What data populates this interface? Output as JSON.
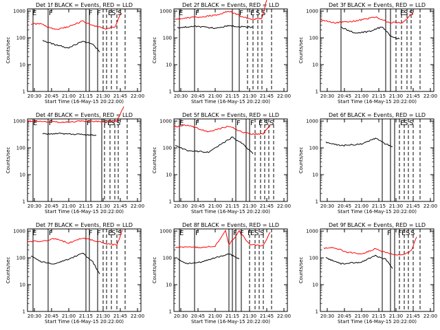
{
  "chart_data": {
    "type": "line",
    "layout": "3x3 grid of panels",
    "x_ticks": [
      "20:30",
      "20:45",
      "21:00",
      "21:15",
      "21:30",
      "21:45",
      "22:00"
    ],
    "x_range_min": [
      20.4,
      22.05
    ],
    "y_ticks": [
      "1",
      "10",
      "100",
      "1000"
    ],
    "y_range": [
      1,
      1200
    ],
    "y_scale": "log",
    "ylabel": "Counts/sec",
    "xlabel": "Start Time (16-May-15 20:22:00)",
    "legend": "BLACK = Events, RED = LLD",
    "colors": {
      "events": "#000000",
      "lld": "#ff0000"
    },
    "panels": [
      {
        "title": "Det 1f BLACK = Events, RED = LLD",
        "events": {
          "t": [
            20.62,
            20.8,
            21.0,
            21.2,
            21.35,
            21.45
          ],
          "v": [
            80,
            55,
            42,
            75,
            58,
            30
          ]
        },
        "lld": {
          "t": [
            20.45,
            20.6,
            20.8,
            21.0,
            21.2,
            21.35,
            21.55,
            21.68,
            21.75
          ],
          "v": [
            330,
            330,
            200,
            260,
            420,
            280,
            220,
            260,
            800
          ]
        },
        "solid_markers": [
          20.48,
          20.7,
          21.25,
          21.3,
          21.42
        ],
        "dashed_markers": [
          21.5,
          21.55,
          21.62,
          21.7,
          21.82
        ],
        "flags": [
          {
            "t": 20.46,
            "text": "E"
          },
          {
            "t": 20.7,
            "text": "F"
          },
          {
            "t": 21.28,
            "text": "F"
          },
          {
            "t": 21.4,
            "text": "F"
          },
          {
            "t": 21.56,
            "text": "E"
          },
          {
            "t": 21.61,
            "text": "S"
          },
          {
            "t": 21.7,
            "text": "S"
          }
        ]
      },
      {
        "title": "Det 2f BLACK = Events, RED = LLD",
        "events": {
          "t": [
            20.45,
            20.7,
            21.0,
            21.2,
            21.4,
            21.55
          ],
          "v": [
            240,
            270,
            230,
            280,
            260,
            250
          ]
        },
        "lld": {
          "t": [
            20.42,
            20.6,
            20.8,
            21.0,
            21.2,
            21.4,
            21.55,
            21.68,
            21.75
          ],
          "v": [
            500,
            560,
            600,
            700,
            1000,
            600,
            500,
            520,
            2600
          ]
        },
        "solid_markers": [
          20.48,
          20.7,
          21.25,
          21.35
        ],
        "dashed_markers": [
          21.47,
          21.55,
          21.62,
          21.68,
          21.82
        ],
        "flags": [
          {
            "t": 20.46,
            "text": "E"
          },
          {
            "t": 20.7,
            "text": "F"
          },
          {
            "t": 21.34,
            "text": "F"
          },
          {
            "t": 21.5,
            "text": "E"
          },
          {
            "t": 21.58,
            "text": "S"
          },
          {
            "t": 21.66,
            "text": "S"
          }
        ]
      },
      {
        "title": "Det 3f BLACK = Events, RED = LLD",
        "events": {
          "t": [
            20.7,
            20.9,
            21.1,
            21.3,
            21.42,
            21.55
          ],
          "v": [
            250,
            150,
            170,
            260,
            120,
            90
          ]
        },
        "lld": {
          "t": [
            20.4,
            20.6,
            20.9,
            21.2,
            21.4,
            21.6,
            21.75
          ],
          "v": [
            480,
            360,
            420,
            600,
            380,
            360,
            900
          ]
        },
        "solid_markers": [
          20.7,
          21.35,
          21.42
        ],
        "dashed_markers": [
          21.5,
          21.58,
          21.66,
          21.72,
          21.85
        ],
        "flags": [
          {
            "t": 21.55,
            "text": "E"
          },
          {
            "t": 21.6,
            "text": "S"
          },
          {
            "t": 21.68,
            "text": "S"
          }
        ]
      },
      {
        "title": "Det 4f BLACK = Events, RED = LLD",
        "events": {
          "t": [
            20.62,
            20.9,
            21.2,
            21.4
          ],
          "v": [
            330,
            340,
            310,
            300
          ]
        },
        "lld": {
          "t": [
            20.4,
            20.6,
            20.9,
            21.2,
            21.4,
            21.6,
            21.7,
            21.8
          ],
          "v": [
            1000,
            950,
            900,
            1000,
            980,
            950,
            1000,
            3500
          ]
        },
        "solid_markers": [
          20.48,
          20.7,
          21.25,
          21.32,
          21.48
        ],
        "dashed_markers": [
          21.52,
          21.6,
          21.67,
          21.72,
          21.85
        ],
        "flags": [
          {
            "t": 20.47,
            "text": "E"
          },
          {
            "t": 20.7,
            "text": "F"
          },
          {
            "t": 21.25,
            "text": "F"
          },
          {
            "t": 21.5,
            "text": "F"
          },
          {
            "t": 21.55,
            "text": "E"
          },
          {
            "t": 21.6,
            "text": "S"
          },
          {
            "t": 21.68,
            "text": "S"
          }
        ]
      },
      {
        "title": "Det 5f BLACK = Events, RED = LLD",
        "events": {
          "t": [
            20.42,
            20.6,
            20.9,
            21.25,
            21.4,
            21.55
          ],
          "v": [
            120,
            80,
            70,
            250,
            140,
            60
          ]
        },
        "lld": {
          "t": [
            20.4,
            20.6,
            20.9,
            21.2,
            21.4,
            21.55,
            21.7,
            21.8
          ],
          "v": [
            600,
            720,
            400,
            650,
            380,
            320,
            340,
            700
          ]
        },
        "solid_markers": [
          20.48,
          20.7,
          21.3,
          21.45,
          21.5
        ],
        "dashed_markers": [
          21.58,
          21.66,
          21.72,
          21.78,
          21.85
        ],
        "flags": [
          {
            "t": 20.47,
            "text": "E"
          },
          {
            "t": 20.7,
            "text": "F"
          },
          {
            "t": 21.3,
            "text": "F"
          },
          {
            "t": 21.5,
            "text": "F"
          },
          {
            "t": 21.62,
            "text": "E"
          },
          {
            "t": 21.7,
            "text": "S"
          },
          {
            "t": 21.78,
            "text": "S"
          }
        ]
      },
      {
        "title": "Det 6f BLACK = Events, RED = LLD",
        "events": {
          "t": [
            20.48,
            20.7,
            21.0,
            21.2,
            21.35,
            21.45
          ],
          "v": [
            160,
            120,
            140,
            230,
            140,
            110
          ]
        },
        "lld": {
          "t": [],
          "v": []
        },
        "solid_markers": [
          21.3,
          21.42,
          21.48
        ],
        "dashed_markers": [
          21.55,
          21.62,
          21.68,
          21.75,
          21.85
        ],
        "flags": [
          {
            "t": 21.55,
            "text": "E"
          },
          {
            "t": 21.6,
            "text": "S"
          },
          {
            "t": 21.68,
            "text": "S"
          }
        ]
      },
      {
        "title": "Det 7f BLACK = Events, RED = LLD",
        "events": {
          "t": [
            20.45,
            20.6,
            20.8,
            21.0,
            21.2,
            21.35,
            21.45
          ],
          "v": [
            120,
            70,
            60,
            90,
            150,
            70,
            25
          ]
        },
        "lld": {
          "t": [
            20.4,
            20.6,
            20.8,
            21.0,
            21.2,
            21.4,
            21.6,
            21.7,
            21.78
          ],
          "v": [
            400,
            420,
            520,
            360,
            550,
            420,
            320,
            300,
            1100
          ]
        },
        "solid_markers": [
          20.48,
          20.7,
          21.25,
          21.3,
          21.42
        ],
        "dashed_markers": [
          21.5,
          21.55,
          21.62,
          21.7,
          21.82
        ],
        "flags": [
          {
            "t": 20.46,
            "text": "E"
          },
          {
            "t": 20.7,
            "text": "F"
          },
          {
            "t": 21.28,
            "text": "F"
          },
          {
            "t": 21.4,
            "text": "F"
          },
          {
            "t": 21.56,
            "text": "E"
          },
          {
            "t": 21.61,
            "text": "S"
          },
          {
            "t": 21.7,
            "text": "S"
          }
        ]
      },
      {
        "title": "Det 8f BLACK = Events, RED = LLD",
        "events": {
          "t": [
            20.45,
            20.6,
            20.8,
            21.0,
            21.2,
            21.35
          ],
          "v": [
            90,
            60,
            70,
            100,
            140,
            90
          ]
        },
        "lld": {
          "t": [
            20.42,
            20.6,
            20.8,
            21.0,
            21.15,
            21.2,
            21.35,
            21.5,
            21.7,
            21.8
          ],
          "v": [
            250,
            260,
            240,
            280,
            1000,
            300,
            1000,
            320,
            280,
            900
          ]
        },
        "solid_markers": [
          20.48,
          20.7,
          21.2,
          21.25,
          21.3,
          21.38
        ],
        "dashed_markers": [
          21.5,
          21.58,
          21.64,
          21.7,
          21.82
        ],
        "flags": [
          {
            "t": 20.47,
            "text": "E"
          },
          {
            "t": 20.7,
            "text": "F"
          },
          {
            "t": 21.25,
            "text": "F"
          },
          {
            "t": 21.35,
            "text": "F"
          },
          {
            "t": 21.46,
            "text": "F"
          },
          {
            "t": 21.5,
            "text": "E"
          },
          {
            "t": 21.56,
            "text": "S"
          },
          {
            "t": 21.64,
            "text": "S"
          }
        ]
      },
      {
        "title": "Det 9f BLACK = Events, RED = LLD",
        "events": {
          "t": [
            20.48,
            20.7,
            21.0,
            21.2,
            21.35,
            21.45
          ],
          "v": [
            100,
            60,
            70,
            120,
            90,
            40
          ]
        },
        "lld": {
          "t": [
            20.45,
            20.6,
            20.8,
            21.0,
            21.2,
            21.4,
            21.6,
            21.72,
            21.8
          ],
          "v": [
            230,
            240,
            160,
            140,
            220,
            140,
            130,
            180,
            600
          ]
        },
        "solid_markers": [
          21.3,
          21.42,
          21.48
        ],
        "dashed_markers": [
          21.55,
          21.62,
          21.68,
          21.75,
          21.85
        ],
        "flags": [
          {
            "t": 21.36,
            "text": "F"
          },
          {
            "t": 21.52,
            "text": "F"
          },
          {
            "t": 21.57,
            "text": "E"
          },
          {
            "t": 21.63,
            "text": "S"
          },
          {
            "t": 21.7,
            "text": "S"
          }
        ]
      }
    ]
  }
}
